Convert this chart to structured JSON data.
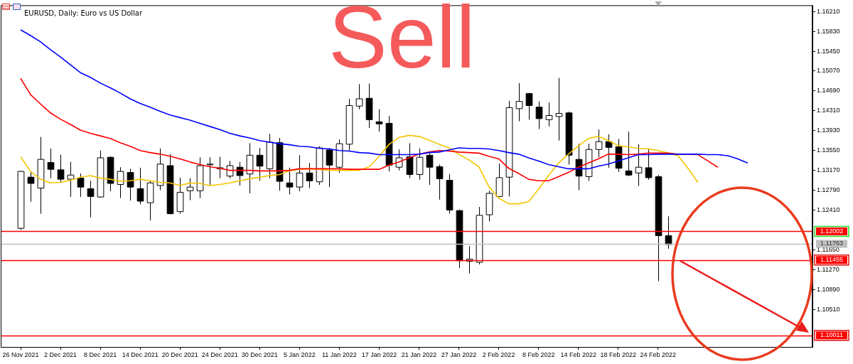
{
  "chart_data": {
    "type": "candlestick",
    "title": "EURUSD, Daily: Euro vs US Dollar",
    "annotations": [
      "Sell"
    ],
    "categories": [
      "26 Nov 2021",
      null,
      null,
      null,
      "2 Dec 2021",
      null,
      null,
      null,
      "8 Dec 2021",
      null,
      null,
      null,
      "14 Dec 2021",
      null,
      null,
      null,
      "20 Dec 2021",
      null,
      null,
      null,
      "24 Dec 2021",
      null,
      null,
      null,
      "30 Dec 2021",
      null,
      null,
      null,
      "5 Jan 2022",
      null,
      null,
      null,
      "11 Jan 2022",
      null,
      null,
      null,
      "17 Jan 2022",
      null,
      null,
      null,
      "21 Jan 2022",
      null,
      null,
      null,
      "27 Jan 2022",
      null,
      null,
      null,
      "2 Feb 2022",
      null,
      null,
      null,
      "8 Feb 2022",
      null,
      null,
      null,
      "14 Feb 2022",
      null,
      null,
      null,
      "18 Feb 2022",
      null,
      null,
      null,
      "24 Feb 2022",
      null,
      null,
      null,
      null,
      null,
      null,
      null,
      null,
      null
    ],
    "ohlc": [
      [
        1.1206,
        1.1316,
        1.1203,
        1.1315
      ],
      [
        1.1304,
        1.1315,
        1.1257,
        1.1292
      ],
      [
        1.1283,
        1.1381,
        1.1234,
        1.1338
      ],
      [
        1.1332,
        1.1359,
        1.1302,
        1.1319
      ],
      [
        1.1318,
        1.1347,
        1.1293,
        1.13
      ],
      [
        1.13,
        1.1333,
        1.1266,
        1.1308
      ],
      [
        1.1302,
        1.1311,
        1.1266,
        1.1285
      ],
      [
        1.1282,
        1.1297,
        1.1227,
        1.1267
      ],
      [
        1.1266,
        1.1355,
        1.1265,
        1.1341
      ],
      [
        1.1342,
        1.1344,
        1.1277,
        1.1292
      ],
      [
        1.129,
        1.1323,
        1.1264,
        1.1315
      ],
      [
        1.1313,
        1.132,
        1.1259,
        1.1285
      ],
      [
        1.1282,
        1.1322,
        1.1252,
        1.1258
      ],
      [
        1.1255,
        1.1296,
        1.1221,
        1.1293
      ],
      [
        1.1288,
        1.1359,
        1.1279,
        1.1329
      ],
      [
        1.1326,
        1.1348,
        1.1233,
        1.1234
      ],
      [
        1.1238,
        1.1303,
        1.1234,
        1.1275
      ],
      [
        1.1278,
        1.1302,
        1.126,
        1.1285
      ],
      [
        1.1278,
        1.1342,
        1.1264,
        1.1326
      ],
      [
        1.1328,
        1.1342,
        1.1289,
        1.1329
      ],
      [
        1.132,
        1.1343,
        1.1302,
        1.1322
      ],
      [
        1.1306,
        1.1335,
        1.1302,
        1.1326
      ],
      [
        1.1323,
        1.1333,
        1.1288,
        1.1307
      ],
      [
        1.131,
        1.1369,
        1.1273,
        1.1346
      ],
      [
        1.1346,
        1.136,
        1.1297,
        1.1325
      ],
      [
        1.132,
        1.1387,
        1.1302,
        1.1371
      ],
      [
        1.137,
        1.1379,
        1.1278,
        1.1296
      ],
      [
        1.1293,
        1.1322,
        1.1271,
        1.1285
      ],
      [
        1.1285,
        1.1346,
        1.1277,
        1.1312
      ],
      [
        1.1312,
        1.1331,
        1.1283,
        1.1297
      ],
      [
        1.1295,
        1.1363,
        1.1289,
        1.136
      ],
      [
        1.1356,
        1.136,
        1.1285,
        1.1327
      ],
      [
        1.1323,
        1.1376,
        1.1312,
        1.1368
      ],
      [
        1.1367,
        1.1454,
        1.1355,
        1.1441
      ],
      [
        1.144,
        1.1482,
        1.1434,
        1.1454
      ],
      [
        1.1455,
        1.1483,
        1.1398,
        1.1414
      ],
      [
        1.141,
        1.1434,
        1.1391,
        1.1406
      ],
      [
        1.1407,
        1.1421,
        1.1315,
        1.1327
      ],
      [
        1.1323,
        1.1357,
        1.1317,
        1.1341
      ],
      [
        1.1343,
        1.1369,
        1.1302,
        1.1309
      ],
      [
        1.1309,
        1.1359,
        1.1299,
        1.1342
      ],
      [
        1.1346,
        1.135,
        1.1289,
        1.1323
      ],
      [
        1.1324,
        1.1328,
        1.1261,
        1.1301
      ],
      [
        1.1298,
        1.131,
        1.1234,
        1.1241
      ],
      [
        1.124,
        1.1242,
        1.113,
        1.1144
      ],
      [
        1.1143,
        1.1172,
        1.112,
        1.1147
      ],
      [
        1.1141,
        1.1247,
        1.1137,
        1.1231
      ],
      [
        1.1232,
        1.1278,
        1.1219,
        1.1273
      ],
      [
        1.1267,
        1.133,
        1.1266,
        1.1303
      ],
      [
        1.1304,
        1.145,
        1.1267,
        1.1437
      ],
      [
        1.1435,
        1.1484,
        1.1411,
        1.1449
      ],
      [
        1.1464,
        1.1465,
        1.1414,
        1.1441
      ],
      [
        1.1438,
        1.1449,
        1.1396,
        1.1416
      ],
      [
        1.1414,
        1.1447,
        1.1401,
        1.1422
      ],
      [
        1.142,
        1.1494,
        1.1374,
        1.1426
      ],
      [
        1.1427,
        1.1429,
        1.1328,
        1.1346
      ],
      [
        1.1338,
        1.1368,
        1.1279,
        1.1306
      ],
      [
        1.1305,
        1.1368,
        1.1297,
        1.1357
      ],
      [
        1.1357,
        1.1395,
        1.1342,
        1.1372
      ],
      [
        1.1372,
        1.1386,
        1.1322,
        1.1361
      ],
      [
        1.1362,
        1.1377,
        1.1314,
        1.1321
      ],
      [
        1.1316,
        1.1391,
        1.1306,
        1.1308
      ],
      [
        1.1312,
        1.1367,
        1.1287,
        1.1323
      ],
      [
        1.1322,
        1.1358,
        1.1299,
        1.1303
      ],
      [
        1.1305,
        1.1308,
        1.1105,
        1.1192
      ],
      [
        1.1192,
        1.1229,
        1.1167,
        1.1175
      ],
      null,
      null,
      null,
      null,
      null,
      null,
      null,
      null
    ],
    "series": [
      {
        "type": "line",
        "color": "#0000ff",
        "values": [
          1.1586,
          1.1575,
          1.1563,
          1.1548,
          1.1534,
          1.1519,
          1.1504,
          1.1495,
          1.1484,
          1.1475,
          1.1465,
          1.1454,
          1.1445,
          1.1438,
          1.143,
          1.1423,
          1.1418,
          1.1413,
          1.1407,
          1.1401,
          1.1395,
          1.1388,
          1.1383,
          1.1379,
          1.1374,
          1.1371,
          1.1368,
          1.1366,
          1.1363,
          1.1362,
          1.1359,
          1.1358,
          1.1355,
          1.1354,
          1.1351,
          1.135,
          1.1347,
          1.1347,
          1.1347,
          1.1347,
          1.1348,
          1.1351,
          1.1352,
          1.1356,
          1.136,
          1.1359,
          1.1359,
          1.1358,
          1.1355,
          1.1351,
          1.1348,
          1.1341,
          1.1335,
          1.1328,
          1.1324,
          1.132,
          1.132,
          1.132,
          1.1325,
          1.1329,
          1.1335,
          1.1341,
          1.1347,
          1.1347,
          1.1348,
          1.1348,
          1.1348,
          1.1348,
          1.1348,
          1.1347,
          1.1347,
          1.1345,
          1.1339,
          1.1331
        ]
      },
      {
        "type": "line",
        "color": "#ff0000",
        "values": [
          1.1493,
          1.1462,
          1.1444,
          1.1427,
          1.1415,
          1.1405,
          1.1394,
          1.1388,
          1.1383,
          1.1378,
          1.137,
          1.1363,
          1.1355,
          1.1351,
          1.1348,
          1.1344,
          1.1339,
          1.1333,
          1.1328,
          1.1324,
          1.1321,
          1.1317,
          1.1317,
          1.1317,
          1.1316,
          1.1316,
          1.1316,
          1.1317,
          1.132,
          1.132,
          1.132,
          1.132,
          1.132,
          1.1319,
          1.1319,
          1.1319,
          1.1319,
          1.1327,
          1.1333,
          1.1341,
          1.1348,
          1.1352,
          1.1355,
          1.1354,
          1.1352,
          1.1351,
          1.135,
          1.1344,
          1.1339,
          1.1321,
          1.1311,
          1.13,
          1.1297,
          1.1297,
          1.1305,
          1.1313,
          1.1323,
          1.1331,
          1.1339,
          1.1348,
          1.1348,
          1.1347,
          1.1348,
          1.135,
          1.135,
          1.135,
          1.1348,
          1.1348,
          1.1347,
          1.1335,
          1.1323,
          null,
          null,
          null
        ]
      },
      {
        "type": "line",
        "color": "#f2c500",
        "values": [
          1.1343,
          1.1315,
          1.13,
          1.1293,
          1.1294,
          1.1298,
          1.1304,
          1.1307,
          1.1302,
          1.13,
          1.1296,
          1.1297,
          1.13,
          1.1297,
          1.1294,
          1.1293,
          1.1288,
          1.1293,
          1.1292,
          1.1288,
          1.129,
          1.1293,
          1.1297,
          1.1301,
          1.1304,
          1.1307,
          1.1309,
          1.1316,
          1.1319,
          1.132,
          1.1319,
          1.1317,
          1.1317,
          1.1317,
          1.1317,
          1.1324,
          1.1344,
          1.1367,
          1.138,
          1.1384,
          1.1382,
          1.1375,
          1.1367,
          1.136,
          1.1348,
          1.1337,
          1.1324,
          1.1286,
          1.1264,
          1.1253,
          1.1253,
          1.1257,
          1.1281,
          1.1307,
          1.1331,
          1.1348,
          1.1364,
          1.1378,
          1.1382,
          1.1374,
          1.1364,
          1.1362,
          1.1359,
          1.1358,
          1.1355,
          1.135,
          1.1345,
          1.1321,
          1.1294,
          null,
          null,
          null,
          null,
          null
        ]
      }
    ],
    "ylim": [
      1.0979,
      1.1633
    ],
    "yticks": [
      {
        "value": 1.1621,
        "label": "1.16210"
      },
      {
        "value": 1.1583,
        "label": "1.15830"
      },
      {
        "value": 1.1545,
        "label": "1.15450"
      },
      {
        "value": 1.1507,
        "label": "1.15070"
      },
      {
        "value": 1.1469,
        "label": "1.14690"
      },
      {
        "value": 1.1431,
        "label": "1.14310"
      },
      {
        "value": 1.1393,
        "label": "1.13930"
      },
      {
        "value": 1.1355,
        "label": "1.13550"
      },
      {
        "value": 1.1317,
        "label": "1.13170"
      },
      {
        "value": 1.1279,
        "label": "1.12790"
      },
      {
        "value": 1.1241,
        "label": "1.12410"
      },
      {
        "value": 1.1165,
        "label": "1.11650"
      },
      {
        "value": 1.1127,
        "label": "1.11270"
      },
      {
        "value": 1.1089,
        "label": "1.10890"
      },
      {
        "value": 1.1051,
        "label": "1.10510"
      }
    ],
    "ref_lines": [
      {
        "axis": "y",
        "value": 1.12002,
        "label": "1.12002",
        "color": "#ff0000"
      },
      {
        "axis": "y",
        "value": 1.11455,
        "label": "1.11455",
        "color": "#ff0000"
      },
      {
        "axis": "y",
        "value": 1.10011,
        "label": "1.10011",
        "color": "#ff0000"
      },
      {
        "axis": "y",
        "value": 1.11763,
        "label": "1.11763",
        "color": "#c0c0c0"
      }
    ],
    "marker": "none",
    "legend": false,
    "grid": false
  }
}
